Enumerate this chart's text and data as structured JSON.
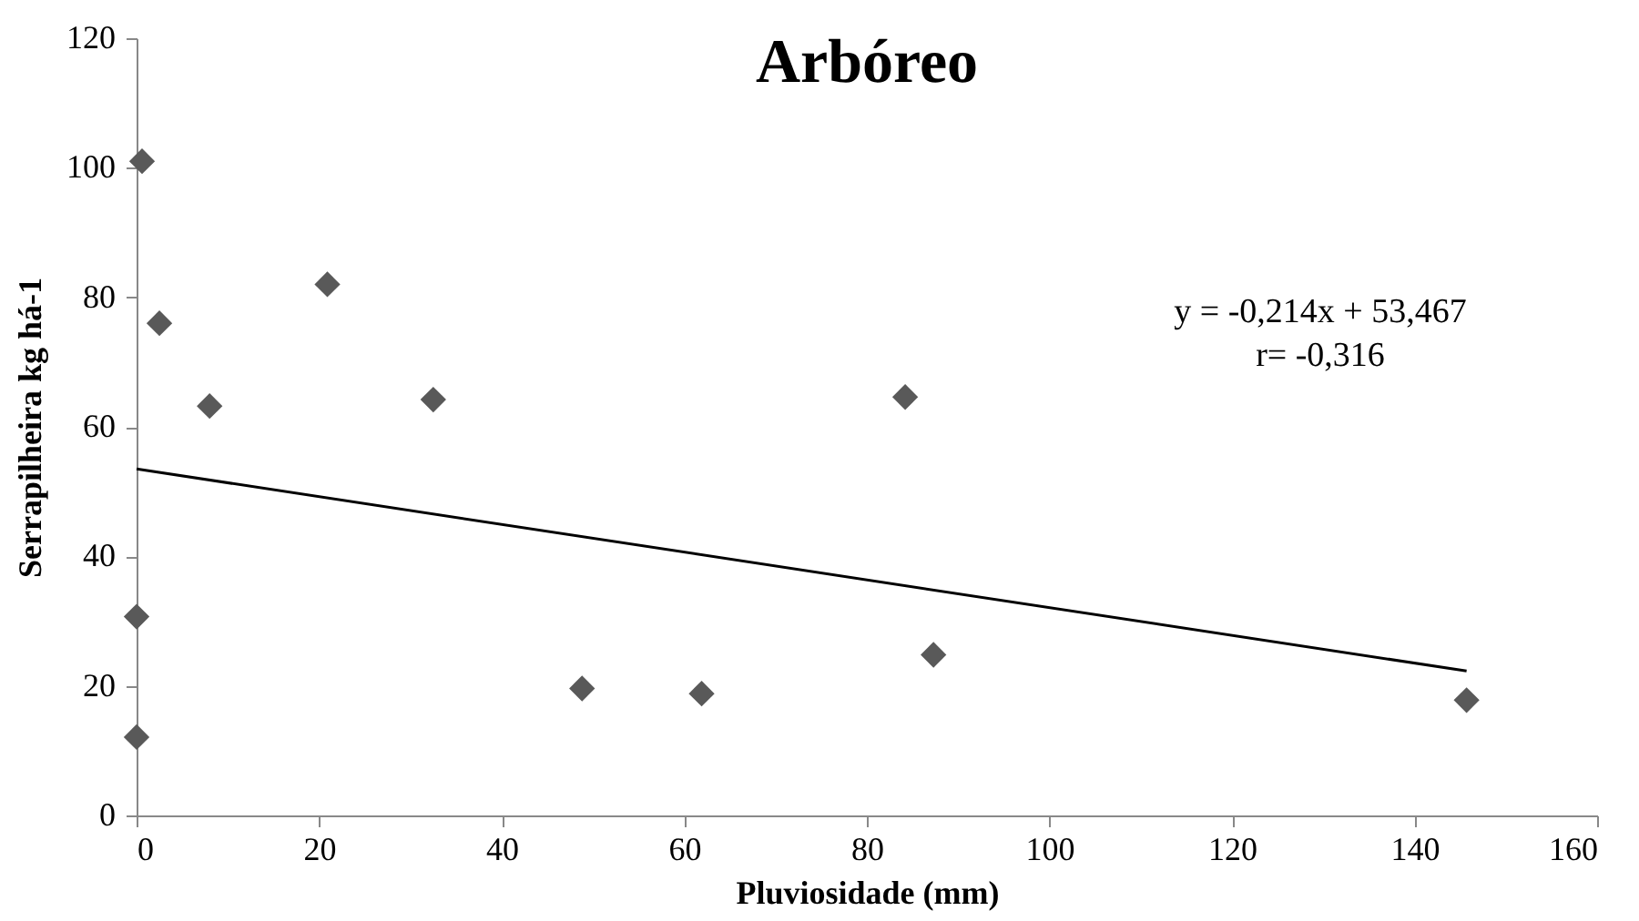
{
  "chart_data": {
    "type": "scatter",
    "title": "Arbóreo",
    "xlabel": "Pluviosidade (mm)",
    "ylabel": "Serrapilheira  kg há-1",
    "x": [
      0.6,
      2.5,
      8.0,
      20.9,
      32.5,
      0,
      0,
      48.8,
      61.9,
      84.2,
      87.3,
      145.7
    ],
    "series": [
      {
        "color": "#595959",
        "marker": "diamond",
        "values": [
          101,
          76,
          63.2,
          82,
          64.2,
          30.7,
          12.1,
          19.6,
          18.8,
          64.6,
          24.8,
          17.8
        ]
      },
      {
        "type": "line",
        "color": "#000000",
        "x": [
          0,
          145.7
        ],
        "values": [
          53.5,
          22.3
        ],
        "line_style": "solid"
      }
    ],
    "annotations": [
      "y = -0,214x + 53,467",
      "r= -0,316"
    ],
    "xlim": [
      0,
      160
    ],
    "xticks": [
      0,
      20,
      40,
      60,
      80,
      100,
      120,
      140,
      160
    ],
    "ylim": [
      0,
      120
    ],
    "yticks": [
      0,
      20,
      40,
      60,
      80,
      100,
      120
    ],
    "grid": false,
    "legend": false
  }
}
